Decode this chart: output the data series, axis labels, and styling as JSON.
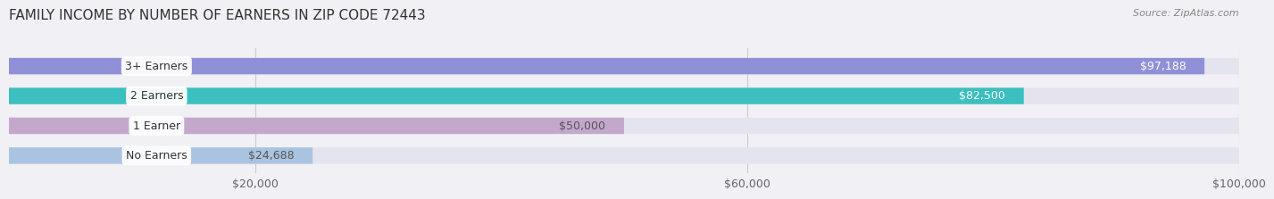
{
  "title": "FAMILY INCOME BY NUMBER OF EARNERS IN ZIP CODE 72443",
  "source": "Source: ZipAtlas.com",
  "categories": [
    "No Earners",
    "1 Earner",
    "2 Earners",
    "3+ Earners"
  ],
  "values": [
    24688,
    50000,
    82500,
    97188
  ],
  "labels": [
    "$24,688",
    "$50,000",
    "$82,500",
    "$97,188"
  ],
  "bar_colors": [
    "#a8c4e0",
    "#c4a8cc",
    "#3bbfbf",
    "#9090d8"
  ],
  "label_colors": [
    "#555555",
    "#555555",
    "#ffffff",
    "#ffffff"
  ],
  "xlim": [
    0,
    100000
  ],
  "xticks": [
    20000,
    60000,
    100000
  ],
  "xticklabels": [
    "$20,000",
    "$60,000",
    "$100,000"
  ],
  "background_color": "#f0f0f5",
  "bar_background_color": "#e4e4ee",
  "title_fontsize": 11,
  "source_fontsize": 8,
  "tick_fontsize": 9,
  "label_fontsize": 9,
  "category_fontsize": 9
}
